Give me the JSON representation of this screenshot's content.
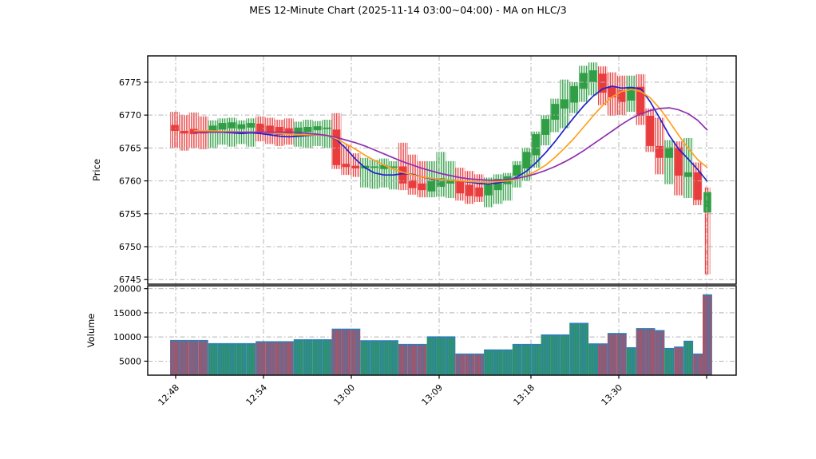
{
  "title": "MES 12-Minute Chart (2025-11-14 03:00~04:00) - MA on HLC/3",
  "axes": {
    "price_label": "Price",
    "volume_label": "Volume"
  },
  "colors": {
    "up": "#2f9e44",
    "down": "#e93c3c",
    "volume_base": "#2e7eb8",
    "ma_fast": "#2121cc",
    "ma_mid": "#ffa01e",
    "ma_slow": "#8e2fb0",
    "grid": "#b3b3b3",
    "spine": "#000000",
    "background": "#ffffff"
  },
  "chart_data": {
    "type": "candlestick",
    "title": "MES 12-Minute Chart (2025-11-14 03:00~04:00) - MA on HLC/3",
    "ylabel_price": "Price",
    "ylabel_volume": "Volume",
    "x_tick_labels": [
      "12:48",
      "12:54",
      "13:00",
      "13:09",
      "13:18",
      "13:30",
      ""
    ],
    "price_ticks": [
      6775,
      6770,
      6765,
      6760,
      6755,
      6750,
      6745
    ],
    "volume_ticks": [
      20000,
      15000,
      10000,
      5000
    ],
    "price_range": [
      6744.3,
      6779.0
    ],
    "volume_range": [
      2100,
      20600
    ],
    "grid_style": "dash-dot",
    "legend": "none",
    "candles_ohlcv": [
      [
        6768.5,
        6770.5,
        6765.0,
        6767.6,
        9250
      ],
      [
        6767.6,
        6770.0,
        6764.6,
        6767.2,
        9250
      ],
      [
        6767.9,
        6770.4,
        6765.0,
        6767.1,
        9250
      ],
      [
        6767.5,
        6769.8,
        6764.8,
        6767.2,
        9250
      ],
      [
        6767.3,
        6769.2,
        6765.0,
        6768.4,
        8600
      ],
      [
        6767.8,
        6769.5,
        6765.5,
        6768.8,
        8600
      ],
      [
        6768.0,
        6769.6,
        6765.2,
        6768.9,
        8600
      ],
      [
        6767.9,
        6769.2,
        6765.6,
        6768.6,
        8600
      ],
      [
        6768.1,
        6769.5,
        6765.2,
        6768.8,
        8600
      ],
      [
        6768.7,
        6769.8,
        6766.0,
        6767.3,
        9000
      ],
      [
        6768.4,
        6769.6,
        6765.6,
        6767.1,
        9000
      ],
      [
        6768.2,
        6769.3,
        6765.3,
        6767.0,
        9000
      ],
      [
        6768.0,
        6769.5,
        6765.5,
        6767.1,
        9000
      ],
      [
        6766.9,
        6769.0,
        6765.2,
        6768.1,
        9400
      ],
      [
        6767.4,
        6769.3,
        6765.0,
        6768.2,
        9400
      ],
      [
        6767.7,
        6769.1,
        6765.3,
        6768.3,
        9400
      ],
      [
        6767.9,
        6769.3,
        6765.0,
        6768.1,
        9400
      ],
      [
        6767.8,
        6770.3,
        6761.8,
        6762.4,
        11600
      ],
      [
        6762.6,
        6765.5,
        6760.9,
        6762.1,
        11600
      ],
      [
        6762.3,
        6764.2,
        6760.6,
        6761.9,
        11600
      ],
      [
        6761.9,
        6763.5,
        6759.0,
        6762.3,
        9200
      ],
      [
        6762.0,
        6763.2,
        6758.8,
        6762.2,
        9200
      ],
      [
        6761.8,
        6763.4,
        6759.0,
        6762.4,
        9200
      ],
      [
        6762.0,
        6763.0,
        6758.7,
        6762.2,
        9200
      ],
      [
        6762.2,
        6765.8,
        6758.6,
        6759.6,
        8430
      ],
      [
        6760.1,
        6764.0,
        6757.9,
        6758.9,
        8430
      ],
      [
        6759.6,
        6763.0,
        6757.5,
        6758.6,
        8430
      ],
      [
        6758.4,
        6763.0,
        6757.5,
        6760.1,
        10000
      ],
      [
        6759.1,
        6764.4,
        6757.6,
        6760.4,
        10000
      ],
      [
        6759.6,
        6763.0,
        6757.4,
        6760.2,
        10000
      ],
      [
        6760.0,
        6762.0,
        6757.0,
        6758.1,
        6450
      ],
      [
        6759.4,
        6761.5,
        6756.5,
        6757.7,
        6450
      ],
      [
        6759.0,
        6761.0,
        6756.8,
        6757.6,
        6450
      ],
      [
        6757.8,
        6760.5,
        6756.0,
        6759.4,
        7300
      ],
      [
        6758.6,
        6761.0,
        6756.5,
        6760.3,
        7300
      ],
      [
        6759.5,
        6761.2,
        6757.0,
        6760.7,
        7300
      ],
      [
        6760.8,
        6763.0,
        6759.0,
        6762.4,
        8430
      ],
      [
        6761.9,
        6765.0,
        6760.0,
        6764.4,
        8430
      ],
      [
        6763.9,
        6767.5,
        6762.0,
        6767.1,
        8430
      ],
      [
        6767.0,
        6770.0,
        6765.4,
        6769.4,
        10400
      ],
      [
        6769.3,
        6772.5,
        6767.4,
        6771.7,
        10400
      ],
      [
        6771.0,
        6775.4,
        6768.0,
        6772.4,
        10400
      ],
      [
        6771.9,
        6775.0,
        6770.3,
        6774.4,
        12800
      ],
      [
        6774.0,
        6777.5,
        6772.0,
        6776.4,
        12800
      ],
      [
        6775.0,
        6778.0,
        6773.0,
        6776.8,
        8550
      ],
      [
        6776.3,
        6777.4,
        6771.5,
        6773.4,
        8550
      ],
      [
        6774.4,
        6776.5,
        6769.9,
        6772.7,
        10700
      ],
      [
        6773.8,
        6776.0,
        6770.0,
        6772.0,
        10700
      ],
      [
        6772.2,
        6776.0,
        6770.5,
        6774.3,
        7750
      ],
      [
        6774.3,
        6776.2,
        6768.5,
        6769.9,
        11700
      ],
      [
        6769.9,
        6771.0,
        6764.4,
        6765.3,
        11700
      ],
      [
        6765.3,
        6769.6,
        6761.0,
        6763.5,
        11300
      ],
      [
        6763.5,
        6766.2,
        6759.5,
        6765.1,
        7600
      ],
      [
        6765.1,
        6766.0,
        6757.8,
        6760.8,
        7900
      ],
      [
        6760.6,
        6766.5,
        6757.4,
        6761.3,
        9100
      ],
      [
        6761.3,
        6762.8,
        6756.3,
        6757.1,
        6450
      ],
      [
        6755.2,
        6759.0,
        6745.8,
        6758.3,
        18700
      ]
    ],
    "overrides": {
      "wick_red": [
        56
      ],
      "volume_red": [
        56
      ],
      "narrow_wick": [
        56
      ]
    },
    "ma_series": [
      {
        "name": "MA fast (blue)",
        "color_key": "ma_fast",
        "values": [
          null,
          null,
          6767.5,
          6767.5,
          6767.5,
          6767.4,
          6767.3,
          6767.2,
          6767.3,
          6767.2,
          6767.0,
          6766.8,
          6766.7,
          6766.8,
          6766.9,
          6767.0,
          6766.9,
          6766.3,
          6764.9,
          6763.3,
          6762.0,
          6761.2,
          6760.9,
          6760.9,
          6761.1,
          6761.0,
          6760.6,
          6760.3,
          6760.2,
          6760.1,
          6760.0,
          6759.8,
          6759.6,
          6759.5,
          6759.7,
          6760.0,
          6760.6,
          6761.5,
          6762.8,
          6764.3,
          6766.0,
          6767.9,
          6769.7,
          6771.4,
          6772.9,
          6774.0,
          6774.4,
          6774.1,
          6774.2,
          6774.0,
          6772.0,
          6769.5,
          6766.9,
          6764.8,
          6763.3,
          6761.7,
          6759.9
        ]
      },
      {
        "name": "MA mid (orange)",
        "color_key": "ma_mid",
        "values": [
          null,
          null,
          6767.6,
          6767.6,
          6767.6,
          6767.5,
          6767.5,
          6767.4,
          6767.4,
          6767.4,
          6767.3,
          6767.2,
          6767.1,
          6767.0,
          6767.0,
          6767.0,
          6766.9,
          6766.4,
          6765.6,
          6764.8,
          6763.9,
          6763.1,
          6762.4,
          6761.8,
          6761.3,
          6760.9,
          6760.6,
          6760.4,
          6760.2,
          6760.1,
          6760.0,
          6759.9,
          6759.8,
          6759.8,
          6759.9,
          6760.0,
          6760.3,
          6760.8,
          6761.5,
          6762.4,
          6763.6,
          6765.0,
          6766.5,
          6768.2,
          6769.9,
          6771.5,
          6772.8,
          6773.6,
          6773.9,
          6773.6,
          6772.6,
          6771.0,
          6769.0,
          6766.9,
          6764.9,
          6763.2,
          6762.0
        ]
      },
      {
        "name": "MA slow (purple)",
        "color_key": "ma_slow",
        "values": [
          null,
          null,
          6767.4,
          6767.4,
          6767.4,
          6767.4,
          6767.4,
          6767.4,
          6767.4,
          6767.4,
          6767.4,
          6767.4,
          6767.4,
          6767.4,
          6767.2,
          6767.1,
          6766.9,
          6766.6,
          6766.2,
          6765.8,
          6765.3,
          6764.7,
          6764.1,
          6763.5,
          6762.9,
          6762.4,
          6761.9,
          6761.5,
          6761.1,
          6760.8,
          6760.5,
          6760.3,
          6760.2,
          6760.1,
          6760.1,
          6760.2,
          6760.4,
          6760.7,
          6761.1,
          6761.6,
          6762.2,
          6762.9,
          6763.7,
          6764.6,
          6765.6,
          6766.6,
          6767.6,
          6768.6,
          6769.5,
          6770.2,
          6770.7,
          6771.0,
          6771.1,
          6770.8,
          6770.2,
          6769.2,
          6767.7
        ]
      }
    ]
  }
}
